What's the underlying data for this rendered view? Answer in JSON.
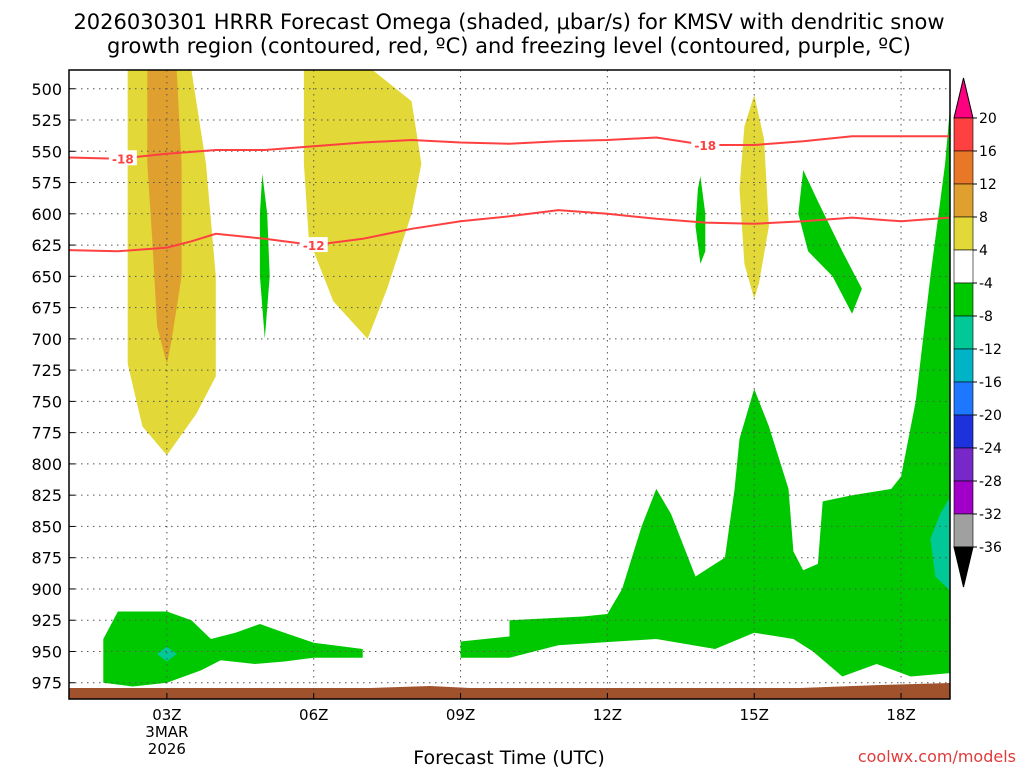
{
  "chart_data": {
    "type": "contour",
    "title": {
      "line1": "2026030301 HRRR Forecast Omega (shaded, μbar/s) for KMSV with dendritic snow",
      "line2": "growth region (contoured, red, ºC) and freezing level (contoured, purple, ºC)"
    },
    "xlabel": "Forecast Time (UTC)",
    "ylabel": "",
    "x_ticks": [
      {
        "hour": 3,
        "label": "03Z",
        "sub1": "3MAR",
        "sub2": "2026"
      },
      {
        "hour": 6,
        "label": "06Z"
      },
      {
        "hour": 9,
        "label": "09Z"
      },
      {
        "hour": 12,
        "label": "12Z"
      },
      {
        "hour": 15,
        "label": "15Z"
      },
      {
        "hour": 18,
        "label": "18Z"
      }
    ],
    "x_range_hours": [
      1,
      19
    ],
    "y_ticks": [
      500,
      525,
      550,
      575,
      600,
      625,
      650,
      675,
      700,
      725,
      750,
      775,
      800,
      825,
      850,
      875,
      900,
      925,
      950,
      975
    ],
    "y_range_hpa": [
      485,
      988
    ],
    "grid": "dotted",
    "colorbar": {
      "labels": [
        "20",
        "16",
        "12",
        "8",
        "4",
        "-4",
        "-8",
        "-12",
        "-16",
        "-20",
        "-24",
        "-28",
        "-32",
        "-36"
      ],
      "colors": [
        "#ff0080",
        "#ff4040",
        "#e87828",
        "#e0a030",
        "#e2d838",
        "#ffffff",
        "#00c800",
        "#00c896",
        "#00b4c8",
        "#1e78ff",
        "#1e32dc",
        "#7828c8",
        "#a000c8",
        "#a0a0a0",
        "#000000"
      ]
    },
    "omega_colors": {
      "plus4": "#e2d838",
      "plus8": "#e0a030",
      "minus4": "#00c800",
      "minus8": "#00c896"
    },
    "omega_regions": [
      {
        "level": "plus4",
        "points": [
          [
            2.2,
            485
          ],
          [
            3.5,
            485
          ],
          [
            3.8,
            560
          ],
          [
            4.0,
            650
          ],
          [
            4.0,
            730
          ],
          [
            3.6,
            760
          ],
          [
            3.0,
            793
          ],
          [
            2.5,
            770
          ],
          [
            2.2,
            720
          ],
          [
            2.2,
            600
          ]
        ]
      },
      {
        "level": "plus8",
        "points": [
          [
            2.6,
            485
          ],
          [
            3.2,
            485
          ],
          [
            3.3,
            560
          ],
          [
            3.3,
            650
          ],
          [
            3.1,
            700
          ],
          [
            3.0,
            720
          ],
          [
            2.8,
            690
          ],
          [
            2.7,
            620
          ],
          [
            2.6,
            560
          ]
        ]
      },
      {
        "level": "plus4",
        "points": [
          [
            5.8,
            485
          ],
          [
            7.2,
            485
          ],
          [
            8.0,
            510
          ],
          [
            8.2,
            560
          ],
          [
            8.0,
            600
          ],
          [
            7.5,
            660
          ],
          [
            7.1,
            700
          ],
          [
            6.4,
            670
          ],
          [
            5.9,
            620
          ],
          [
            5.8,
            560
          ]
        ]
      },
      {
        "level": "plus4",
        "points": [
          [
            15.0,
            505
          ],
          [
            15.2,
            540
          ],
          [
            15.3,
            610
          ],
          [
            15.1,
            655
          ],
          [
            15.0,
            668
          ],
          [
            14.8,
            640
          ],
          [
            14.7,
            580
          ],
          [
            14.8,
            530
          ]
        ]
      },
      {
        "level": "minus4",
        "points": [
          [
            4.95,
            568
          ],
          [
            5.05,
            600
          ],
          [
            5.1,
            650
          ],
          [
            5.0,
            700
          ],
          [
            4.9,
            650
          ],
          [
            4.9,
            600
          ]
        ]
      },
      {
        "level": "minus4",
        "points": [
          [
            13.9,
            570
          ],
          [
            14.0,
            600
          ],
          [
            14.0,
            630
          ],
          [
            13.9,
            640
          ],
          [
            13.8,
            610
          ],
          [
            13.85,
            580
          ]
        ]
      },
      {
        "level": "minus4",
        "points": [
          [
            16.0,
            565
          ],
          [
            16.3,
            590
          ],
          [
            16.8,
            630
          ],
          [
            17.2,
            660
          ],
          [
            17.0,
            680
          ],
          [
            16.6,
            650
          ],
          [
            16.1,
            630
          ],
          [
            15.9,
            600
          ]
        ]
      },
      {
        "level": "minus4",
        "points": [
          [
            19.0,
            515
          ],
          [
            19.1,
            700
          ],
          [
            19.1,
            967
          ],
          [
            18.2,
            970
          ],
          [
            17.5,
            960
          ],
          [
            16.8,
            970
          ],
          [
            16.2,
            950
          ],
          [
            15.8,
            940
          ],
          [
            15.0,
            935
          ],
          [
            14.2,
            948
          ],
          [
            13.0,
            940
          ],
          [
            11.0,
            945
          ],
          [
            10.0,
            955
          ],
          [
            9.0,
            955
          ],
          [
            9.0,
            942
          ],
          [
            10.0,
            938
          ],
          [
            10.0,
            925
          ],
          [
            11.5,
            922
          ],
          [
            12.0,
            920
          ],
          [
            12.3,
            900
          ],
          [
            12.7,
            850
          ],
          [
            13.0,
            820
          ],
          [
            13.3,
            840
          ],
          [
            13.6,
            870
          ],
          [
            13.8,
            890
          ],
          [
            14.2,
            880
          ],
          [
            14.4,
            875
          ],
          [
            14.6,
            820
          ],
          [
            14.7,
            780
          ],
          [
            15.0,
            740
          ],
          [
            15.3,
            770
          ],
          [
            15.7,
            820
          ],
          [
            15.8,
            870
          ],
          [
            16.0,
            885
          ],
          [
            16.3,
            880
          ],
          [
            16.4,
            830
          ],
          [
            17.0,
            825
          ],
          [
            17.8,
            820
          ],
          [
            18.0,
            810
          ],
          [
            18.3,
            750
          ],
          [
            18.6,
            650
          ],
          [
            18.9,
            560
          ]
        ]
      },
      {
        "level": "minus8",
        "points": [
          [
            19.1,
            820
          ],
          [
            18.8,
            840
          ],
          [
            18.6,
            860
          ],
          [
            18.7,
            890
          ],
          [
            19.1,
            905
          ]
        ]
      },
      {
        "level": "minus4",
        "points": [
          [
            1.7,
            940
          ],
          [
            2.0,
            918
          ],
          [
            3.0,
            918
          ],
          [
            3.5,
            925
          ],
          [
            3.9,
            940
          ],
          [
            4.4,
            935
          ],
          [
            4.9,
            928
          ],
          [
            5.4,
            935
          ],
          [
            6.0,
            943
          ],
          [
            7.0,
            948
          ],
          [
            7.0,
            955
          ],
          [
            6.0,
            955
          ],
          [
            5.4,
            958
          ],
          [
            4.8,
            960
          ],
          [
            4.1,
            957
          ],
          [
            3.7,
            965
          ],
          [
            3.0,
            975
          ],
          [
            2.3,
            978
          ],
          [
            1.7,
            975
          ]
        ]
      },
      {
        "level": "minus8",
        "points": [
          [
            2.8,
            952
          ],
          [
            3.0,
            946
          ],
          [
            3.2,
            952
          ],
          [
            3.0,
            958
          ]
        ]
      }
    ],
    "series": [
      {
        "name": "-18",
        "color": "#ff4040",
        "label_hours": [
          2.1,
          14.0
        ],
        "points": [
          [
            1,
            555
          ],
          [
            2,
            556
          ],
          [
            3,
            552
          ],
          [
            4,
            549
          ],
          [
            5,
            549
          ],
          [
            6,
            546
          ],
          [
            7,
            543
          ],
          [
            8,
            541
          ],
          [
            9,
            543
          ],
          [
            10,
            544
          ],
          [
            11,
            542
          ],
          [
            12,
            541
          ],
          [
            13,
            539
          ],
          [
            14,
            545
          ],
          [
            15,
            545
          ],
          [
            16,
            542
          ],
          [
            17,
            538
          ],
          [
            18,
            538
          ],
          [
            19,
            538
          ]
        ]
      },
      {
        "name": "-12",
        "color": "#ff4040",
        "label_hours": [
          6.0
        ],
        "points": [
          [
            1,
            629
          ],
          [
            2,
            630
          ],
          [
            3,
            627
          ],
          [
            3.5,
            622
          ],
          [
            4,
            616
          ],
          [
            5,
            620
          ],
          [
            6,
            625
          ],
          [
            7,
            620
          ],
          [
            8,
            612
          ],
          [
            9,
            606
          ],
          [
            10,
            602
          ],
          [
            11,
            597
          ],
          [
            12,
            600
          ],
          [
            13,
            604
          ],
          [
            14,
            607
          ],
          [
            15,
            608
          ],
          [
            16,
            606
          ],
          [
            17,
            603
          ],
          [
            18,
            606
          ],
          [
            19,
            603
          ]
        ]
      }
    ],
    "freezing_level": []
  },
  "credit": "coolwx.com/models"
}
